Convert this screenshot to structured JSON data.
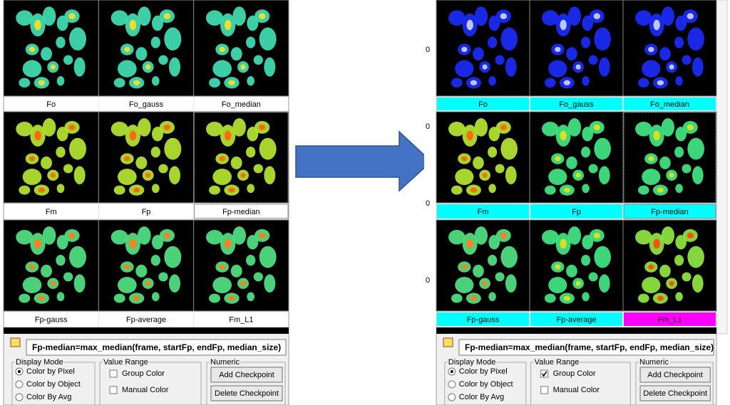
{
  "panels": [
    {
      "tiles": [
        {
          "label": "Fo",
          "tint": "#3fd9b0",
          "core": "#e8e030",
          "label_color": "#ffffff"
        },
        {
          "label": "Fo_gauss",
          "tint": "#3fd9b0",
          "core": "#e8e030",
          "label_color": "#ffffff"
        },
        {
          "label": "Fo_median",
          "tint": "#3fd9b0",
          "core": "#e8e030",
          "label_color": "#ffffff"
        },
        {
          "label": "Fm",
          "tint": "#b0e030",
          "core": "#ff6a10",
          "label_color": "#ffffff"
        },
        {
          "label": "Fp",
          "tint": "#b0e030",
          "core": "#ff6a10",
          "label_color": "#ffffff"
        },
        {
          "label": "Fp-median",
          "tint": "#b0e030",
          "core": "#ff6a10",
          "label_color": "#ffffff"
        },
        {
          "label": "Fp-gauss",
          "tint": "#4fdc80",
          "core": "#ff8020",
          "label_color": "#ffffff"
        },
        {
          "label": "Fp-average",
          "tint": "#4fdc80",
          "core": "#ff8020",
          "label_color": "#ffffff"
        },
        {
          "label": "Fm_L1",
          "tint": "#4fdc80",
          "core": "#ff8020",
          "label_color": "#ffffff"
        }
      ],
      "selected_tile": 5,
      "formula": "Fp-median=max_median(frame, startFp, endFp, median_size)",
      "display_mode": {
        "title": "Display Mode",
        "options": [
          "Color by Pixel",
          "Color by Object",
          "Color By Avg"
        ],
        "selected": 0
      },
      "value_range": {
        "title": "Value Range",
        "options": [
          "Group Color",
          "Manual Color"
        ],
        "checked": [
          false,
          false
        ]
      },
      "numeric": {
        "title": "Numeric",
        "buttons": [
          "Add Checkpoint",
          "Delete Checkpoint"
        ]
      }
    },
    {
      "tiles": [
        {
          "label": "Fo",
          "tint": "#1a2af0",
          "core": "#b8c8ff",
          "label_color": "#00ffff"
        },
        {
          "label": "Fo_gauss",
          "tint": "#1a2af0",
          "core": "#b8c8ff",
          "label_color": "#00ffff"
        },
        {
          "label": "Fo_median",
          "tint": "#1a2af0",
          "core": "#b8c8ff",
          "label_color": "#00ffff"
        },
        {
          "label": "Fm",
          "tint": "#b0e030",
          "core": "#ff6a10",
          "label_color": "#00ffff"
        },
        {
          "label": "Fp",
          "tint": "#3fe080",
          "core": "#d8e020",
          "label_color": "#00ffff"
        },
        {
          "label": "Fp-median",
          "tint": "#3fe080",
          "core": "#d8e020",
          "label_color": "#00ffff"
        },
        {
          "label": "Fp-gauss",
          "tint": "#4fdc80",
          "core": "#ff8020",
          "label_color": "#00ffff"
        },
        {
          "label": "Fp-average",
          "tint": "#3fe080",
          "core": "#d8e020",
          "label_color": "#00ffff"
        },
        {
          "label": "Fm_L1",
          "tint": "#8ce040",
          "core": "#ff5010",
          "label_color": "#ff00ff"
        }
      ],
      "selected_tile": 5,
      "edge_marks": [
        "0",
        "0",
        "0",
        "0"
      ],
      "formula": "Fp-median=max_median(frame, startFp, endFp, median_size)",
      "display_mode": {
        "title": "Display Mode",
        "options": [
          "Color by Pixel",
          "Color by Object",
          "Color By Avg"
        ],
        "selected": 0
      },
      "value_range": {
        "title": "Value Range",
        "options": [
          "Group Color",
          "Manual Color"
        ],
        "checked": [
          true,
          false
        ]
      },
      "numeric": {
        "title": "Numeric",
        "buttons": [
          "Add Checkpoint",
          "Delete Checkpoint"
        ]
      }
    }
  ]
}
